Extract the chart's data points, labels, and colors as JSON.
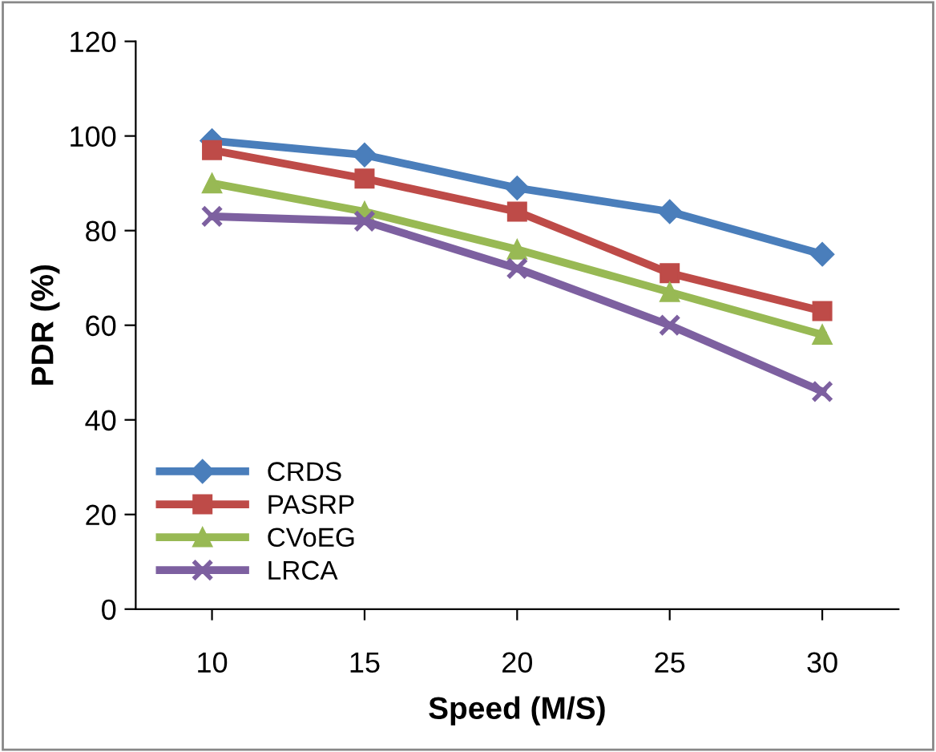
{
  "chart_data": {
    "type": "line",
    "xlabel": "Speed (M/S)",
    "ylabel": "PDR (%)",
    "categories": [
      "10",
      "15",
      "20",
      "25",
      "30"
    ],
    "series": [
      {
        "name": "CRDS",
        "color": "#4a7ebb",
        "marker": "diamond",
        "values": [
          99,
          96,
          89,
          84,
          75
        ]
      },
      {
        "name": "PASRP",
        "color": "#be4b48",
        "marker": "square",
        "values": [
          97,
          91,
          84,
          71,
          63
        ]
      },
      {
        "name": "CVoEG",
        "color": "#98b954",
        "marker": "triangle",
        "values": [
          90,
          84,
          76,
          67,
          58
        ]
      },
      {
        "name": "LRCA",
        "color": "#7d60a0",
        "marker": "cross",
        "values": [
          83,
          82,
          72,
          60,
          46
        ]
      }
    ],
    "ylim": [
      0,
      120
    ],
    "yticks": [
      0,
      20,
      40,
      60,
      80,
      100,
      120
    ],
    "grid": false,
    "legend": "bottom left",
    "line_style": "solid"
  }
}
